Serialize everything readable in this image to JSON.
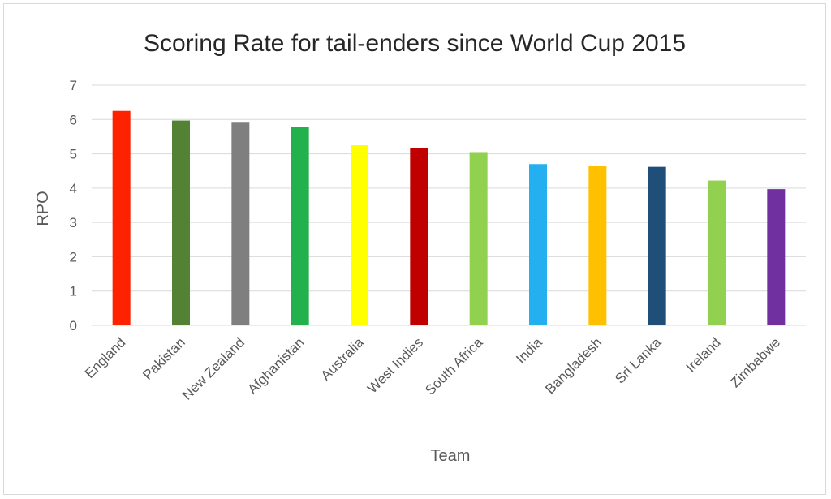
{
  "chart_data": {
    "type": "bar",
    "title": "Scoring Rate for tail-enders since World Cup 2015",
    "xlabel": "Team",
    "ylabel": "RPO",
    "ylim": [
      0,
      7
    ],
    "yticks": [
      0,
      1,
      2,
      3,
      4,
      5,
      6,
      7
    ],
    "grid": true,
    "legend": "none",
    "categories": [
      "England",
      "Pakistan",
      "New Zealand",
      "Afghanistan",
      "Australia",
      "West Indies",
      "South Africa",
      "India",
      "Bangladesh",
      "Sri Lanka",
      "Ireland",
      "Zimbabwe"
    ],
    "values": [
      6.25,
      5.97,
      5.93,
      5.78,
      5.25,
      5.17,
      5.05,
      4.7,
      4.65,
      4.62,
      4.22,
      3.97
    ],
    "colors": [
      "#ff2200",
      "#548235",
      "#7f7f7f",
      "#23b14d",
      "#ffff00",
      "#c00000",
      "#92d050",
      "#24b0f0",
      "#ffc000",
      "#1f4e79",
      "#92d050",
      "#7030a0"
    ]
  }
}
